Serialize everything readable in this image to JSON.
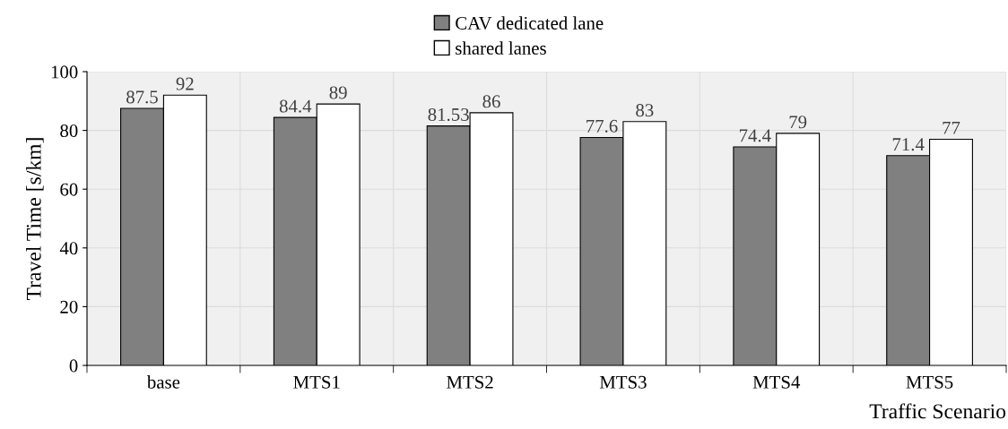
{
  "chart_data": {
    "type": "bar",
    "xlabel": "Traffic Scenario",
    "ylabel": "Travel Time [s/km]",
    "categories": [
      "base",
      "MTS1",
      "MTS2",
      "MTS3",
      "MTS4",
      "MTS5"
    ],
    "series": [
      {
        "name": "CAV dedicated lane",
        "color": "#808080",
        "values": [
          87.5,
          84.4,
          81.53,
          77.6,
          74.4,
          71.4
        ]
      },
      {
        "name": "shared lanes",
        "color": "#ffffff",
        "values": [
          92,
          89,
          86,
          83,
          79,
          77
        ]
      }
    ],
    "ylim": [
      0,
      100
    ],
    "yticks": [
      0,
      20,
      40,
      60,
      80,
      100
    ],
    "grid": true,
    "legend": "top",
    "data_labels": true
  }
}
